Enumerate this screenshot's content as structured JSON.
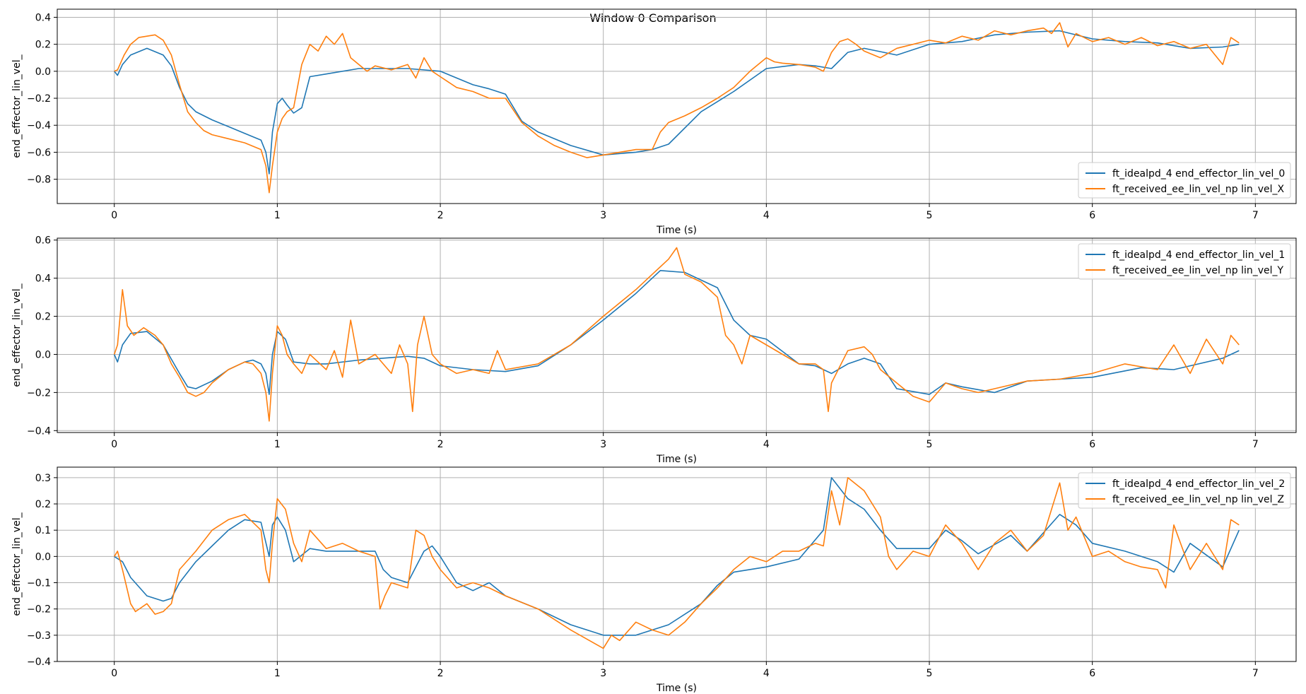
{
  "title": "Window 0 Comparison",
  "colors": {
    "ideal": "#1f77b4",
    "received": "#ff7f0e",
    "grid": "#b0b0b0"
  },
  "chart_data": [
    {
      "type": "line",
      "xlabel": "Time (s)",
      "ylabel": "end_effector_lin_vel_",
      "xlim": [
        -0.35,
        7.25
      ],
      "ylim": [
        -0.98,
        0.46
      ],
      "xticks": [
        0,
        1,
        2,
        3,
        4,
        5,
        6,
        7
      ],
      "yticks": [
        -0.8,
        -0.6,
        -0.4,
        -0.2,
        0.0,
        0.2,
        0.4
      ],
      "ytick_labels": [
        "−0.8",
        "−0.6",
        "−0.4",
        "−0.2",
        "0.0",
        "0.2",
        "0.4"
      ],
      "grid": true,
      "legend_loc": "lower-right",
      "series": [
        {
          "name": "ft_idealpd_4 end_effector_lin_vel_0",
          "color": "#1f77b4",
          "x": [
            0,
            0.02,
            0.05,
            0.1,
            0.2,
            0.3,
            0.35,
            0.4,
            0.45,
            0.5,
            0.6,
            0.7,
            0.8,
            0.9,
            0.93,
            0.95,
            0.97,
            1.0,
            1.03,
            1.06,
            1.1,
            1.15,
            1.2,
            1.3,
            1.5,
            1.8,
            2.0,
            2.2,
            2.3,
            2.4,
            2.5,
            2.6,
            2.8,
            3.0,
            3.2,
            3.3,
            3.4,
            3.6,
            3.8,
            4.0,
            4.2,
            4.3,
            4.4,
            4.5,
            4.6,
            4.8,
            5.0,
            5.2,
            5.4,
            5.6,
            5.8,
            6.0,
            6.2,
            6.4,
            6.6,
            6.8,
            6.9
          ],
          "y": [
            0.0,
            -0.03,
            0.05,
            0.12,
            0.17,
            0.12,
            0.04,
            -0.12,
            -0.24,
            -0.3,
            -0.36,
            -0.41,
            -0.46,
            -0.51,
            -0.6,
            -0.76,
            -0.45,
            -0.24,
            -0.2,
            -0.25,
            -0.31,
            -0.27,
            -0.04,
            -0.02,
            0.02,
            0.02,
            0.0,
            -0.1,
            -0.13,
            -0.17,
            -0.37,
            -0.45,
            -0.55,
            -0.62,
            -0.6,
            -0.58,
            -0.54,
            -0.3,
            -0.15,
            0.02,
            0.05,
            0.04,
            0.02,
            0.14,
            0.17,
            0.12,
            0.2,
            0.22,
            0.27,
            0.29,
            0.3,
            0.24,
            0.22,
            0.21,
            0.17,
            0.18,
            0.2
          ]
        },
        {
          "name": "ft_received_ee_lin_vel_np lin_vel_X",
          "color": "#ff7f0e",
          "x": [
            0,
            0.02,
            0.06,
            0.1,
            0.15,
            0.2,
            0.25,
            0.3,
            0.35,
            0.4,
            0.45,
            0.5,
            0.55,
            0.6,
            0.7,
            0.8,
            0.9,
            0.93,
            0.95,
            0.97,
            1.0,
            1.03,
            1.06,
            1.1,
            1.15,
            1.2,
            1.25,
            1.3,
            1.35,
            1.4,
            1.45,
            1.5,
            1.55,
            1.6,
            1.7,
            1.8,
            1.85,
            1.9,
            1.95,
            2.0,
            2.1,
            2.2,
            2.3,
            2.4,
            2.5,
            2.6,
            2.7,
            2.8,
            2.9,
            3.0,
            3.1,
            3.2,
            3.3,
            3.35,
            3.4,
            3.5,
            3.6,
            3.7,
            3.8,
            3.9,
            4.0,
            4.05,
            4.1,
            4.2,
            4.3,
            4.35,
            4.4,
            4.45,
            4.5,
            4.55,
            4.6,
            4.7,
            4.8,
            4.9,
            5.0,
            5.1,
            5.2,
            5.3,
            5.4,
            5.5,
            5.6,
            5.7,
            5.75,
            5.8,
            5.85,
            5.9,
            6.0,
            6.1,
            6.2,
            6.3,
            6.4,
            6.5,
            6.6,
            6.7,
            6.8,
            6.85,
            6.9
          ],
          "y": [
            0.0,
            0.01,
            0.12,
            0.2,
            0.25,
            0.26,
            0.27,
            0.23,
            0.12,
            -0.1,
            -0.3,
            -0.38,
            -0.44,
            -0.47,
            -0.5,
            -0.53,
            -0.58,
            -0.7,
            -0.9,
            -0.7,
            -0.45,
            -0.35,
            -0.3,
            -0.27,
            0.05,
            0.2,
            0.15,
            0.26,
            0.2,
            0.28,
            0.1,
            0.05,
            0.0,
            0.04,
            0.01,
            0.05,
            -0.05,
            0.1,
            0.0,
            -0.04,
            -0.12,
            -0.15,
            -0.2,
            -0.2,
            -0.38,
            -0.48,
            -0.55,
            -0.6,
            -0.64,
            -0.62,
            -0.6,
            -0.58,
            -0.58,
            -0.45,
            -0.38,
            -0.33,
            -0.27,
            -0.2,
            -0.12,
            0.0,
            0.1,
            0.07,
            0.06,
            0.05,
            0.03,
            0.0,
            0.14,
            0.22,
            0.24,
            0.2,
            0.15,
            0.1,
            0.17,
            0.2,
            0.23,
            0.21,
            0.26,
            0.23,
            0.3,
            0.27,
            0.3,
            0.32,
            0.28,
            0.36,
            0.18,
            0.28,
            0.22,
            0.25,
            0.2,
            0.25,
            0.19,
            0.22,
            0.17,
            0.2,
            0.05,
            0.25,
            0.21
          ]
        }
      ]
    },
    {
      "type": "line",
      "xlabel": "Time (s)",
      "ylabel": "end_effector_lin_vel_",
      "xlim": [
        -0.35,
        7.25
      ],
      "ylim": [
        -0.41,
        0.61
      ],
      "xticks": [
        0,
        1,
        2,
        3,
        4,
        5,
        6,
        7
      ],
      "yticks": [
        -0.4,
        -0.2,
        0.0,
        0.2,
        0.4,
        0.6
      ],
      "ytick_labels": [
        "−0.4",
        "−0.2",
        "0.0",
        "0.2",
        "0.4",
        "0.6"
      ],
      "grid": true,
      "legend_loc": "upper-right",
      "series": [
        {
          "name": "ft_idealpd_4 end_effector_lin_vel_1",
          "color": "#1f77b4",
          "x": [
            0,
            0.02,
            0.05,
            0.1,
            0.2,
            0.3,
            0.4,
            0.45,
            0.5,
            0.6,
            0.7,
            0.8,
            0.85,
            0.9,
            0.93,
            0.95,
            0.97,
            1.0,
            1.05,
            1.1,
            1.2,
            1.3,
            1.5,
            1.8,
            1.9,
            2.0,
            2.2,
            2.4,
            2.6,
            2.8,
            3.0,
            3.2,
            3.35,
            3.5,
            3.7,
            3.8,
            3.9,
            4.0,
            4.2,
            4.3,
            4.4,
            4.5,
            4.6,
            4.7,
            4.8,
            5.0,
            5.1,
            5.2,
            5.4,
            5.6,
            6.0,
            6.3,
            6.5,
            6.8,
            6.9
          ],
          "y": [
            0.0,
            -0.04,
            0.05,
            0.11,
            0.12,
            0.05,
            -0.1,
            -0.17,
            -0.18,
            -0.14,
            -0.08,
            -0.04,
            -0.03,
            -0.05,
            -0.1,
            -0.21,
            0.0,
            0.12,
            0.08,
            -0.04,
            -0.05,
            -0.05,
            -0.03,
            -0.01,
            -0.02,
            -0.06,
            -0.08,
            -0.09,
            -0.06,
            0.05,
            0.18,
            0.32,
            0.44,
            0.43,
            0.35,
            0.18,
            0.1,
            0.08,
            -0.05,
            -0.06,
            -0.1,
            -0.05,
            -0.02,
            -0.05,
            -0.18,
            -0.21,
            -0.15,
            -0.17,
            -0.2,
            -0.14,
            -0.12,
            -0.07,
            -0.08,
            -0.02,
            0.02
          ]
        },
        {
          "name": "ft_received_ee_lin_vel_np lin_vel_Y",
          "color": "#ff7f0e",
          "x": [
            0,
            0.02,
            0.05,
            0.08,
            0.12,
            0.18,
            0.25,
            0.3,
            0.35,
            0.4,
            0.45,
            0.5,
            0.55,
            0.6,
            0.7,
            0.8,
            0.85,
            0.9,
            0.93,
            0.95,
            0.97,
            1.0,
            1.03,
            1.06,
            1.1,
            1.15,
            1.2,
            1.3,
            1.35,
            1.4,
            1.45,
            1.5,
            1.6,
            1.7,
            1.75,
            1.8,
            1.83,
            1.86,
            1.9,
            1.95,
            2.0,
            2.1,
            2.2,
            2.3,
            2.35,
            2.4,
            2.6,
            2.8,
            3.0,
            3.2,
            3.3,
            3.4,
            3.45,
            3.5,
            3.6,
            3.7,
            3.75,
            3.8,
            3.85,
            3.9,
            4.0,
            4.1,
            4.2,
            4.3,
            4.35,
            4.38,
            4.4,
            4.5,
            4.6,
            4.65,
            4.7,
            4.8,
            4.9,
            5.0,
            5.05,
            5.1,
            5.2,
            5.3,
            5.4,
            5.6,
            5.8,
            6.0,
            6.2,
            6.4,
            6.5,
            6.6,
            6.7,
            6.8,
            6.85,
            6.9
          ],
          "y": [
            0.0,
            0.05,
            0.34,
            0.15,
            0.1,
            0.14,
            0.1,
            0.05,
            -0.05,
            -0.12,
            -0.2,
            -0.22,
            -0.2,
            -0.15,
            -0.08,
            -0.04,
            -0.05,
            -0.1,
            -0.2,
            -0.35,
            -0.1,
            0.15,
            0.1,
            0.0,
            -0.05,
            -0.1,
            0.0,
            -0.08,
            0.02,
            -0.12,
            0.18,
            -0.05,
            0.0,
            -0.1,
            0.05,
            -0.05,
            -0.3,
            0.05,
            0.2,
            0.0,
            -0.05,
            -0.1,
            -0.08,
            -0.1,
            0.02,
            -0.08,
            -0.05,
            0.05,
            0.2,
            0.34,
            0.42,
            0.5,
            0.56,
            0.42,
            0.38,
            0.3,
            0.1,
            0.05,
            -0.05,
            0.1,
            0.05,
            0.0,
            -0.05,
            -0.05,
            -0.08,
            -0.3,
            -0.15,
            0.02,
            0.04,
            0.0,
            -0.08,
            -0.15,
            -0.22,
            -0.25,
            -0.2,
            -0.15,
            -0.18,
            -0.2,
            -0.18,
            -0.14,
            -0.13,
            -0.1,
            -0.05,
            -0.08,
            0.05,
            -0.1,
            0.08,
            -0.05,
            0.1,
            0.05
          ]
        }
      ]
    },
    {
      "type": "line",
      "xlabel": "Time (s)",
      "ylabel": "end_effector_lin_vel_",
      "xlim": [
        -0.35,
        7.25
      ],
      "ylim": [
        -0.4,
        0.34
      ],
      "xticks": [
        0,
        1,
        2,
        3,
        4,
        5,
        6,
        7
      ],
      "yticks": [
        -0.4,
        -0.3,
        -0.2,
        -0.1,
        0.0,
        0.1,
        0.2,
        0.3
      ],
      "ytick_labels": [
        "−0.4",
        "−0.3",
        "−0.2",
        "−0.1",
        "0.0",
        "0.1",
        "0.2",
        "0.3"
      ],
      "grid": true,
      "legend_loc": "upper-right",
      "series": [
        {
          "name": "ft_idealpd_4 end_effector_lin_vel_2",
          "color": "#1f77b4",
          "x": [
            0,
            0.05,
            0.1,
            0.2,
            0.3,
            0.35,
            0.4,
            0.5,
            0.6,
            0.7,
            0.8,
            0.9,
            0.95,
            0.97,
            1.0,
            1.05,
            1.1,
            1.2,
            1.3,
            1.5,
            1.6,
            1.65,
            1.7,
            1.8,
            1.9,
            1.95,
            2.0,
            2.1,
            2.2,
            2.3,
            2.4,
            2.6,
            2.8,
            3.0,
            3.2,
            3.4,
            3.6,
            3.7,
            3.8,
            4.0,
            4.2,
            4.35,
            4.4,
            4.5,
            4.6,
            4.7,
            4.8,
            5.0,
            5.1,
            5.2,
            5.3,
            5.5,
            5.6,
            5.8,
            5.9,
            6.0,
            6.2,
            6.4,
            6.5,
            6.6,
            6.8,
            6.9
          ],
          "y": [
            0.0,
            -0.02,
            -0.08,
            -0.15,
            -0.17,
            -0.16,
            -0.1,
            -0.02,
            0.04,
            0.1,
            0.14,
            0.13,
            0.0,
            0.12,
            0.15,
            0.1,
            -0.02,
            0.03,
            0.02,
            0.02,
            0.02,
            -0.05,
            -0.08,
            -0.1,
            0.02,
            0.04,
            0.0,
            -0.1,
            -0.13,
            -0.1,
            -0.15,
            -0.2,
            -0.26,
            -0.3,
            -0.3,
            -0.26,
            -0.18,
            -0.11,
            -0.06,
            -0.04,
            -0.01,
            0.1,
            0.3,
            0.22,
            0.18,
            0.1,
            0.03,
            0.03,
            0.1,
            0.06,
            0.01,
            0.08,
            0.02,
            0.16,
            0.12,
            0.05,
            0.02,
            -0.02,
            -0.06,
            0.05,
            -0.04,
            0.1
          ]
        },
        {
          "name": "ft_received_ee_lin_vel_np lin_vel_Z",
          "color": "#ff7f0e",
          "x": [
            0,
            0.02,
            0.05,
            0.1,
            0.13,
            0.2,
            0.25,
            0.3,
            0.35,
            0.4,
            0.5,
            0.6,
            0.7,
            0.8,
            0.9,
            0.93,
            0.95,
            0.97,
            1.0,
            1.05,
            1.1,
            1.15,
            1.2,
            1.3,
            1.4,
            1.5,
            1.6,
            1.63,
            1.66,
            1.7,
            1.8,
            1.85,
            1.9,
            1.95,
            2.0,
            2.1,
            2.2,
            2.3,
            2.4,
            2.6,
            2.8,
            3.0,
            3.05,
            3.1,
            3.2,
            3.3,
            3.4,
            3.5,
            3.6,
            3.7,
            3.8,
            3.9,
            4.0,
            4.1,
            4.2,
            4.3,
            4.35,
            4.4,
            4.45,
            4.5,
            4.6,
            4.7,
            4.75,
            4.8,
            4.9,
            5.0,
            5.1,
            5.2,
            5.3,
            5.4,
            5.5,
            5.6,
            5.7,
            5.8,
            5.85,
            5.9,
            6.0,
            6.1,
            6.2,
            6.3,
            6.4,
            6.45,
            6.5,
            6.6,
            6.7,
            6.8,
            6.85,
            6.9
          ],
          "y": [
            0.0,
            0.02,
            -0.05,
            -0.18,
            -0.21,
            -0.18,
            -0.22,
            -0.21,
            -0.18,
            -0.05,
            0.02,
            0.1,
            0.14,
            0.16,
            0.1,
            -0.05,
            -0.1,
            0.05,
            0.22,
            0.18,
            0.05,
            -0.02,
            0.1,
            0.03,
            0.05,
            0.02,
            0.0,
            -0.2,
            -0.15,
            -0.1,
            -0.12,
            0.1,
            0.08,
            0.0,
            -0.05,
            -0.12,
            -0.1,
            -0.12,
            -0.15,
            -0.2,
            -0.28,
            -0.35,
            -0.3,
            -0.32,
            -0.25,
            -0.28,
            -0.3,
            -0.25,
            -0.18,
            -0.12,
            -0.05,
            0.0,
            -0.02,
            0.02,
            0.02,
            0.05,
            0.04,
            0.25,
            0.12,
            0.3,
            0.25,
            0.15,
            0.0,
            -0.05,
            0.02,
            0.0,
            0.12,
            0.05,
            -0.05,
            0.05,
            0.1,
            0.02,
            0.08,
            0.28,
            0.1,
            0.15,
            0.0,
            0.02,
            -0.02,
            -0.04,
            -0.05,
            -0.12,
            0.12,
            -0.05,
            0.05,
            -0.05,
            0.14,
            0.12
          ]
        }
      ]
    }
  ]
}
